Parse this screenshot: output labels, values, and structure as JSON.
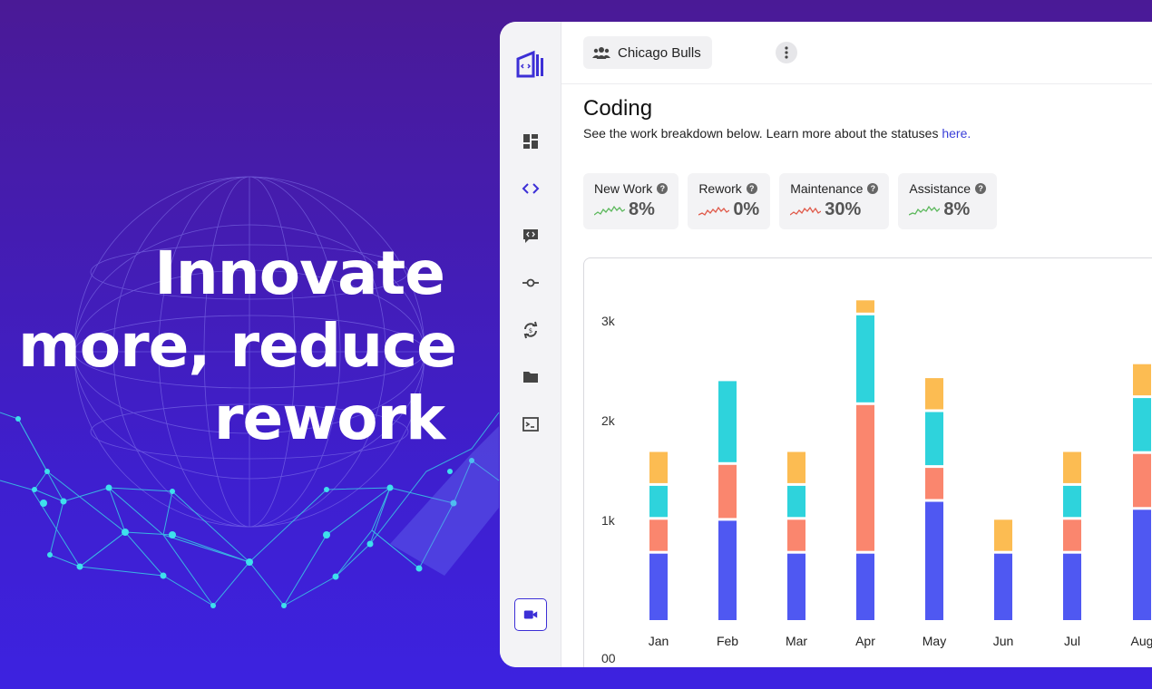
{
  "hero": {
    "lines": [
      "Innovate",
      "more, reduce",
      "rework"
    ]
  },
  "sidebar": {
    "items": [
      {
        "icon": "dashboard-icon"
      },
      {
        "icon": "code-icon"
      },
      {
        "icon": "code-review-icon"
      },
      {
        "icon": "commit-icon"
      },
      {
        "icon": "sync-icon"
      },
      {
        "icon": "folder-icon"
      },
      {
        "icon": "terminal-icon"
      }
    ],
    "video_icon": "video-camera-icon"
  },
  "topbar": {
    "team_name": "Chicago Bulls"
  },
  "page": {
    "title": "Coding",
    "subtitle": "See the work breakdown below. Learn more about the statuses ",
    "link": "here."
  },
  "stats": [
    {
      "label": "New Work",
      "value": "8%",
      "trend_color": "#5cb85c"
    },
    {
      "label": "Rework",
      "value": "0%",
      "trend_color": "#e05a4a"
    },
    {
      "label": "Maintenance",
      "value": "30%",
      "trend_color": "#e05a4a"
    },
    {
      "label": "Assistance",
      "value": "8%",
      "trend_color": "#5cb85c"
    }
  ],
  "colors": {
    "new_work": "#4f58f2",
    "rework": "#fa866e",
    "maintenance": "#2ed3dc",
    "assistance": "#fcbc52"
  },
  "chart_data": {
    "type": "bar",
    "stacked": true,
    "categories": [
      "Jan",
      "Feb",
      "Mar",
      "Apr",
      "May",
      "Jun",
      "Jul",
      "Aug"
    ],
    "y_ticks": [
      "1k",
      "2k",
      "3k"
    ],
    "y_zero_label": "00",
    "ylim": [
      0,
      3600
    ],
    "series": [
      {
        "color": "#4f58f2",
        "values": [
          680,
          1010,
          680,
          680,
          1200,
          680,
          680,
          1120
        ]
      },
      {
        "color": "#fa866e",
        "values": [
          340,
          560,
          340,
          1490,
          340,
          0,
          340,
          560
        ]
      },
      {
        "color": "#2ed3dc",
        "values": [
          340,
          840,
          340,
          900,
          560,
          0,
          340,
          560
        ]
      },
      {
        "color": "#fcbc52",
        "values": [
          340,
          0,
          340,
          150,
          340,
          340,
          340,
          340
        ]
      }
    ]
  }
}
